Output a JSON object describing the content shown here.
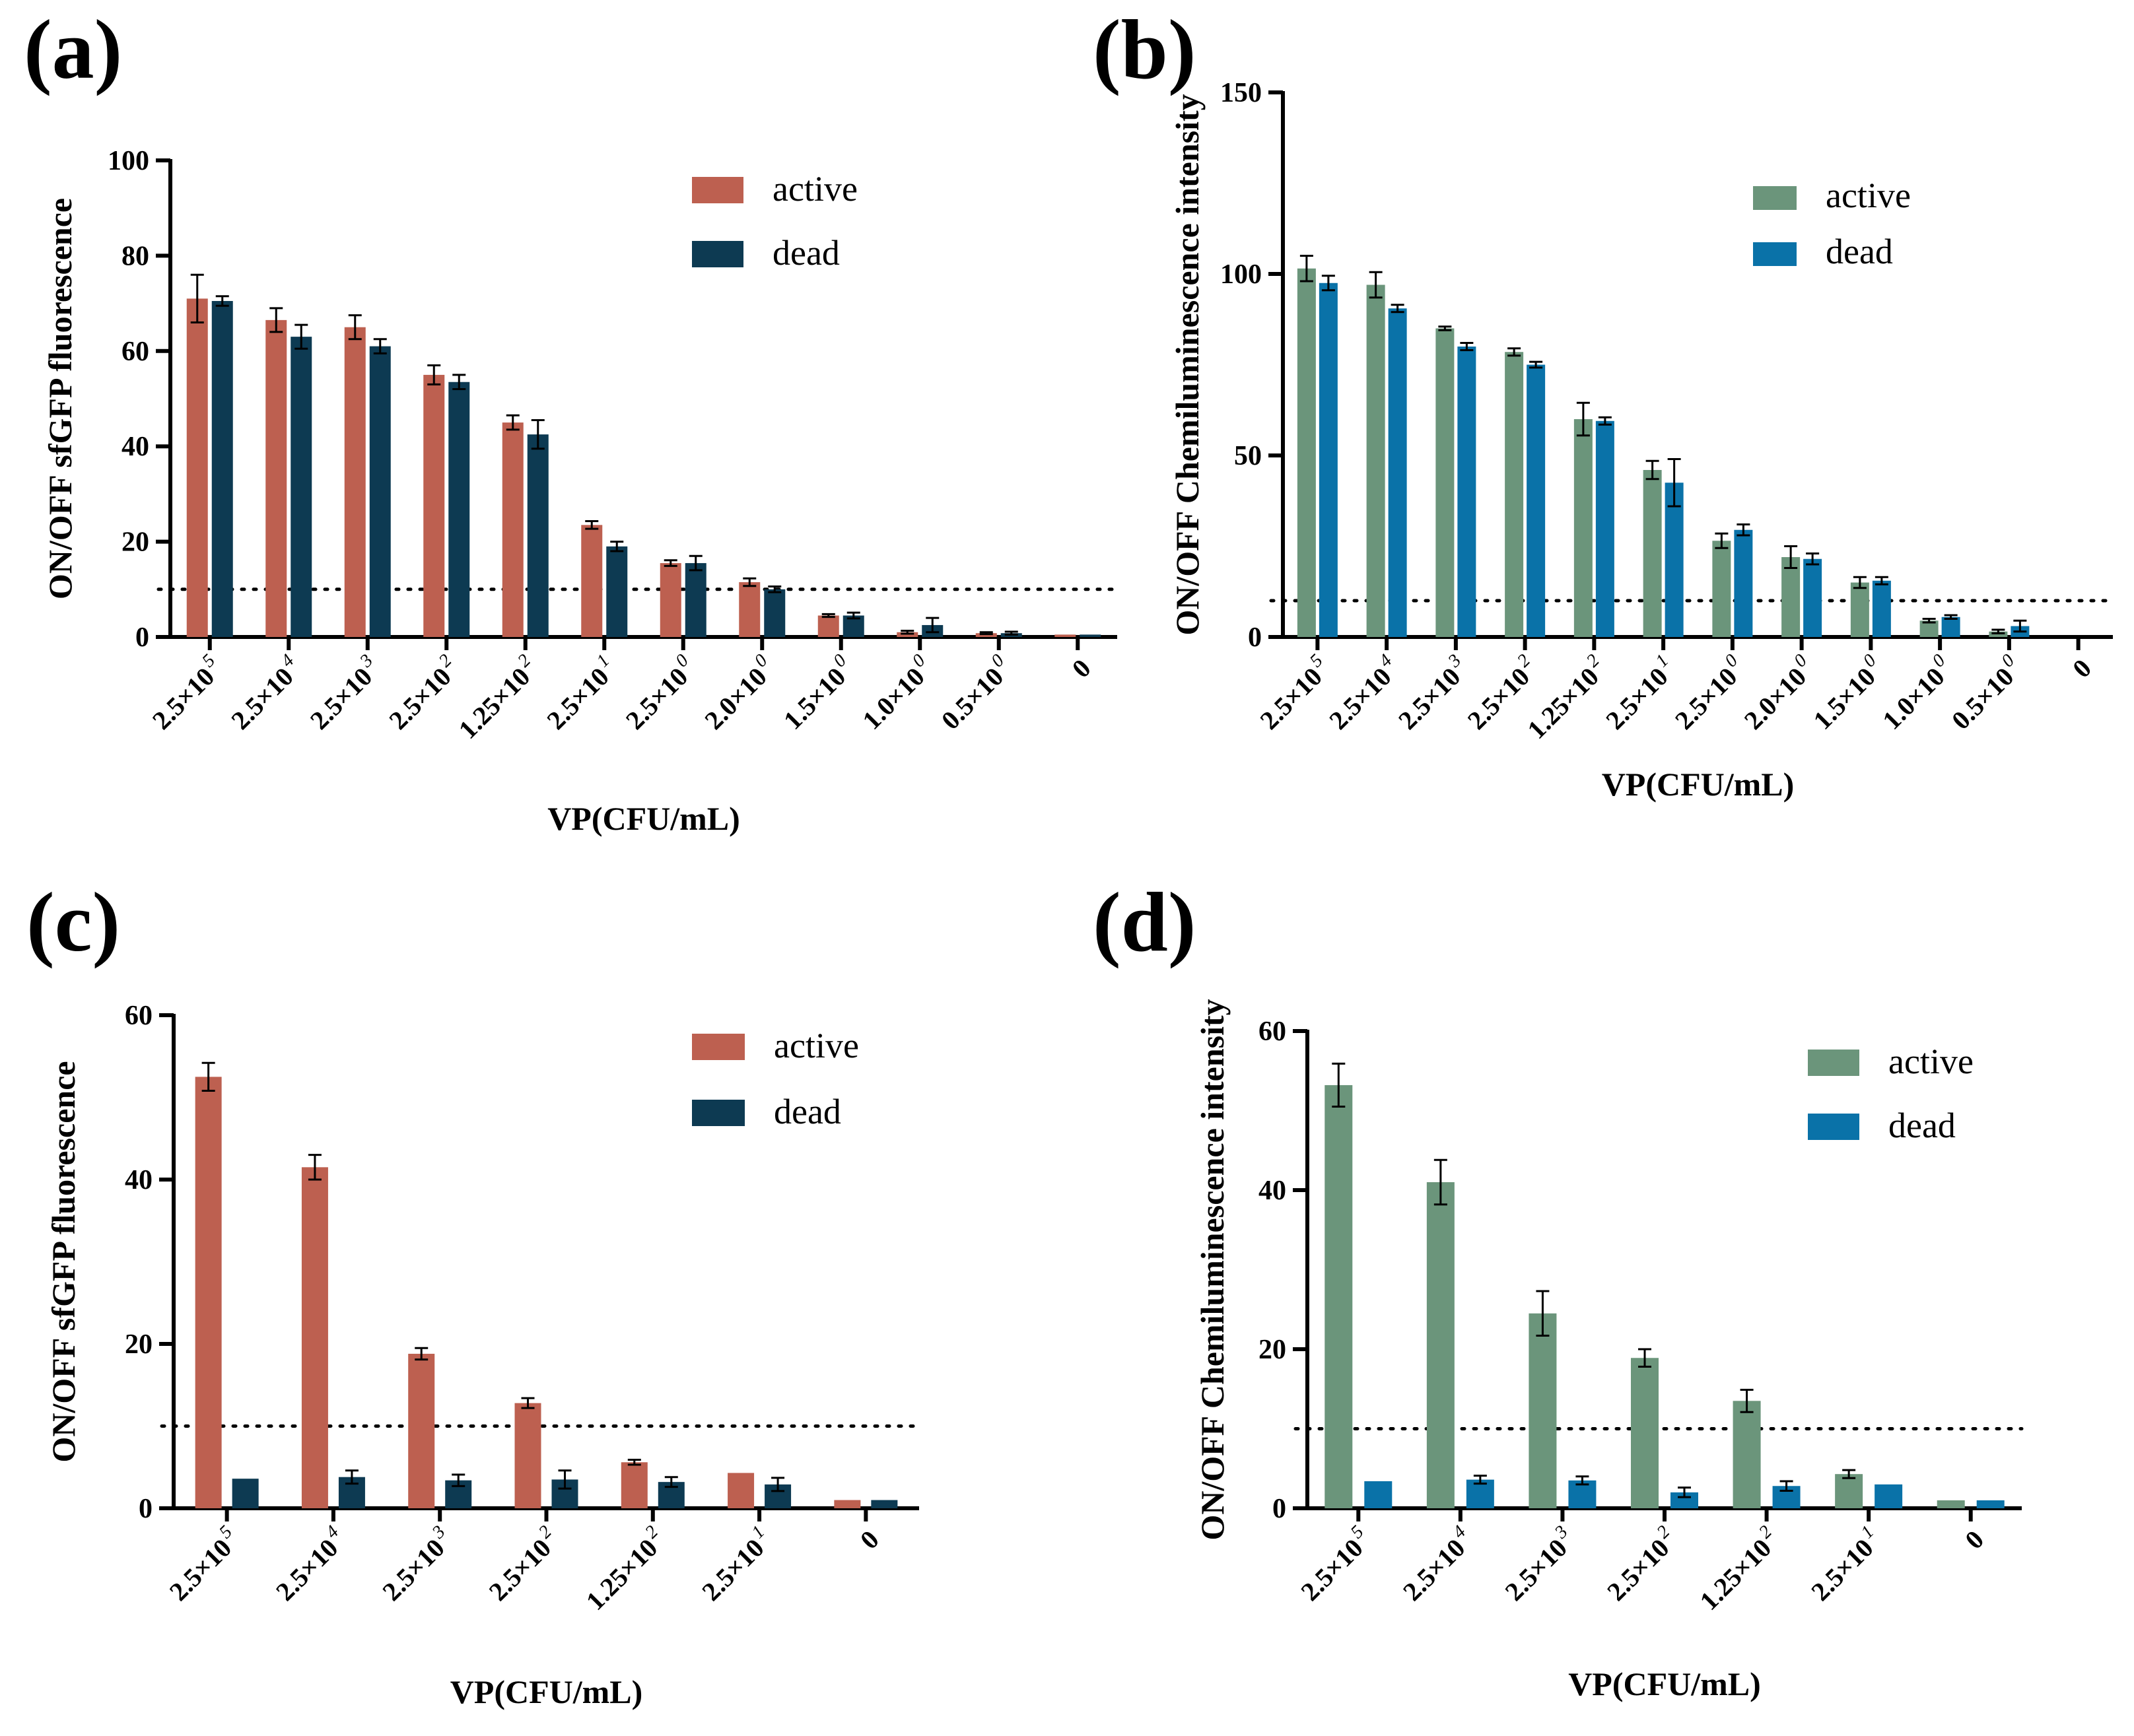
{
  "chart_data": [
    {
      "panel_label": "(a)",
      "type": "bar",
      "ylabel": "ON/OFF sfGFP fluorescence",
      "xlabel": "VP(CFU/mL)",
      "ylim": [
        0,
        100
      ],
      "yticks": [
        "0",
        "20",
        "40",
        "60",
        "80",
        "100"
      ],
      "threshold": 10,
      "categories": [
        {
          "base": "2.5×10",
          "exp": "5"
        },
        {
          "base": "2.5×10",
          "exp": "4"
        },
        {
          "base": "2.5×10",
          "exp": "3"
        },
        {
          "base": "2.5×10",
          "exp": "2"
        },
        {
          "base": "1.25×10",
          "exp": "2"
        },
        {
          "base": "2.5×10",
          "exp": "1"
        },
        {
          "base": "2.5×10",
          "exp": "0"
        },
        {
          "base": "2.0×10",
          "exp": "0"
        },
        {
          "base": "1.5×10",
          "exp": "0"
        },
        {
          "base": "1.0×10",
          "exp": "0"
        },
        {
          "base": "0.5×10",
          "exp": "0"
        },
        {
          "base": "0",
          "exp": ""
        }
      ],
      "series": [
        {
          "name": "active",
          "color": "#bd6050",
          "values": [
            71,
            66.5,
            65,
            55,
            45,
            23.5,
            15.5,
            11.5,
            4.5,
            1,
            0.8,
            0.5
          ],
          "errors": [
            5,
            2.5,
            2.5,
            2,
            1.5,
            0.8,
            0.6,
            0.8,
            0.3,
            0.3,
            0.2,
            0.1
          ]
        },
        {
          "name": "dead",
          "color": "#0d3a52",
          "values": [
            70.5,
            63,
            61,
            53.5,
            42.5,
            19,
            15.5,
            10,
            4.5,
            2.5,
            0.8,
            0.5
          ],
          "errors": [
            1,
            2.5,
            1.5,
            1.5,
            3,
            1,
            1.5,
            0.6,
            0.6,
            1.5,
            0.3,
            0.1
          ]
        }
      ]
    },
    {
      "panel_label": "(b)",
      "type": "bar",
      "ylabel": "ON/OFF Chemiluminescence intensity",
      "xlabel": "VP(CFU/mL)",
      "ylim": [
        0,
        150
      ],
      "yticks": [
        "0",
        "50",
        "100",
        "150"
      ],
      "threshold": 10,
      "categories": [
        {
          "base": "2.5×10",
          "exp": "5"
        },
        {
          "base": "2.5×10",
          "exp": "4"
        },
        {
          "base": "2.5×10",
          "exp": "3"
        },
        {
          "base": "2.5×10",
          "exp": "2"
        },
        {
          "base": "1.25×10",
          "exp": "2"
        },
        {
          "base": "2.5×10",
          "exp": "1"
        },
        {
          "base": "2.5×10",
          "exp": "0"
        },
        {
          "base": "2.0×10",
          "exp": "0"
        },
        {
          "base": "1.5×10",
          "exp": "0"
        },
        {
          "base": "1.0×10",
          "exp": "0"
        },
        {
          "base": "0.5×10",
          "exp": "0"
        },
        {
          "base": "0",
          "exp": ""
        }
      ],
      "series": [
        {
          "name": "active",
          "color": "#6b957b",
          "values": [
            101.5,
            97,
            85,
            78.5,
            60,
            46,
            26.5,
            22,
            15,
            4.5,
            1.5,
            0
          ],
          "errors": [
            3.5,
            3.5,
            0.5,
            1,
            4.5,
            2.5,
            2,
            3,
            1.5,
            0.5,
            0.5,
            0
          ]
        },
        {
          "name": "dead",
          "color": "#0a72a8",
          "values": [
            97.5,
            90.5,
            80,
            75,
            59.5,
            42.5,
            29.5,
            21.5,
            15.5,
            5.5,
            3,
            0
          ],
          "errors": [
            2,
            1,
            1,
            0.8,
            1,
            6.5,
            1.5,
            1.5,
            1,
            0.5,
            1.5,
            0
          ]
        }
      ]
    },
    {
      "panel_label": "(c)",
      "type": "bar",
      "ylabel": "ON/OFF sfGFP fluorescence",
      "xlabel": "VP(CFU/mL)",
      "ylim": [
        0,
        60
      ],
      "yticks": [
        "0",
        "20",
        "40",
        "60"
      ],
      "threshold": 10,
      "categories": [
        {
          "base": "2.5×10",
          "exp": "5"
        },
        {
          "base": "2.5×10",
          "exp": "4"
        },
        {
          "base": "2.5×10",
          "exp": "3"
        },
        {
          "base": "2.5×10",
          "exp": "2"
        },
        {
          "base": "1.25×10",
          "exp": "2"
        },
        {
          "base": "2.5×10",
          "exp": "1"
        },
        {
          "base": "0",
          "exp": ""
        }
      ],
      "series": [
        {
          "name": "active",
          "color": "#bd6050",
          "values": [
            52.5,
            41.5,
            18.8,
            12.8,
            5.6,
            4.3,
            1
          ],
          "errors": [
            1.7,
            1.5,
            0.7,
            0.6,
            0.3,
            0.1,
            0.1
          ]
        },
        {
          "name": "dead",
          "color": "#0d3a52",
          "values": [
            3.6,
            3.8,
            3.4,
            3.5,
            3.2,
            2.9,
            1
          ],
          "errors": [
            0.1,
            0.8,
            0.7,
            1.1,
            0.6,
            0.8,
            0.1
          ]
        }
      ]
    },
    {
      "panel_label": "(d)",
      "type": "bar",
      "ylabel": "ON/OFF Chemiluminescence intensity",
      "xlabel": "VP(CFU/mL)",
      "ylim": [
        0,
        60
      ],
      "yticks": [
        "0",
        "20",
        "40",
        "60"
      ],
      "threshold": 10,
      "categories": [
        {
          "base": "2.5×10",
          "exp": "5"
        },
        {
          "base": "2.5×10",
          "exp": "4"
        },
        {
          "base": "2.5×10",
          "exp": "3"
        },
        {
          "base": "2.5×10",
          "exp": "2"
        },
        {
          "base": "1.25×10",
          "exp": "2"
        },
        {
          "base": "2.5×10",
          "exp": "1"
        },
        {
          "base": "0",
          "exp": ""
        }
      ],
      "series": [
        {
          "name": "active",
          "color": "#6b957b",
          "values": [
            53.2,
            41,
            24.5,
            18.9,
            13.5,
            4.3,
            1
          ],
          "errors": [
            2.7,
            2.8,
            2.8,
            1.1,
            1.4,
            0.5,
            0.1
          ]
        },
        {
          "name": "dead",
          "color": "#0a72a8",
          "values": [
            3.4,
            3.6,
            3.5,
            2,
            2.8,
            3,
            1
          ],
          "errors": [
            0.1,
            0.5,
            0.5,
            0.6,
            0.6,
            0.1,
            0.1
          ]
        }
      ]
    }
  ]
}
